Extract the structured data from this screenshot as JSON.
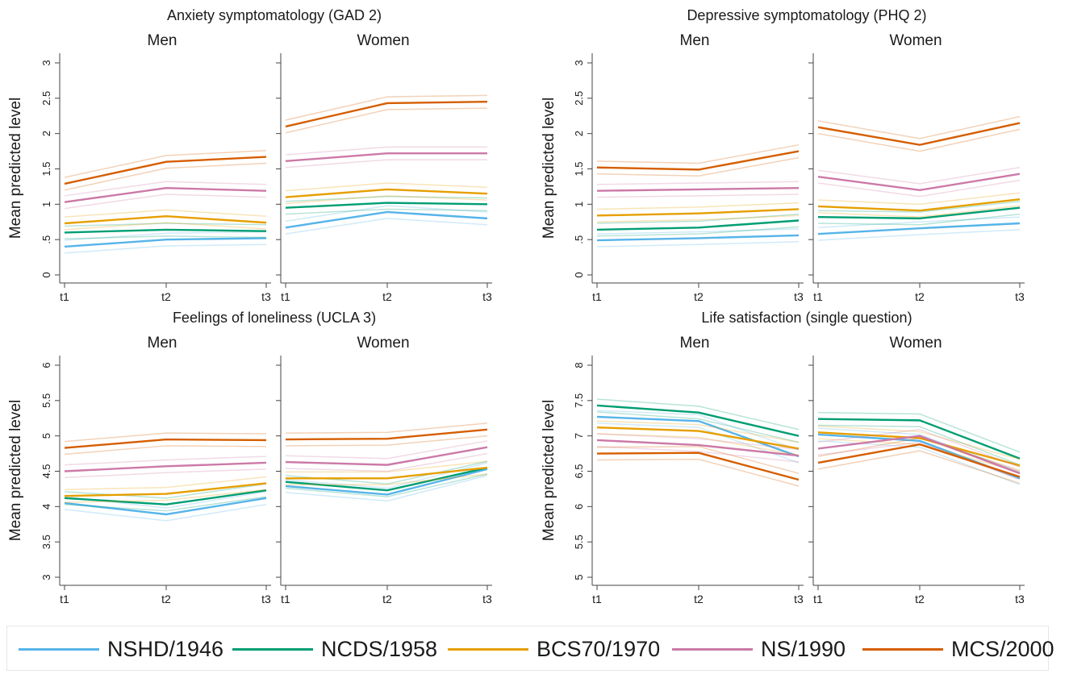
{
  "chart_data": [
    {
      "type": "line",
      "title": "Anxiety symptomatology (GAD 2)",
      "ylabel": "Mean predicted level",
      "ylim": [
        0,
        3
      ],
      "yticks": [
        "0",
        ".5",
        "1",
        "1.5",
        "2",
        "2.5",
        "3"
      ],
      "x": [
        "t1",
        "t2",
        "t3"
      ],
      "panels": [
        {
          "label": "Men",
          "series": [
            {
              "name": "NSHD/1946",
              "values": [
                0.4,
                0.5,
                0.52
              ]
            },
            {
              "name": "NCDS/1958",
              "values": [
                0.6,
                0.64,
                0.62
              ]
            },
            {
              "name": "BCS70/1970",
              "values": [
                0.73,
                0.83,
                0.74
              ]
            },
            {
              "name": "NS/1990",
              "values": [
                1.03,
                1.23,
                1.19
              ]
            },
            {
              "name": "MCS/2000",
              "values": [
                1.29,
                1.6,
                1.67
              ]
            }
          ]
        },
        {
          "label": "Women",
          "series": [
            {
              "name": "NSHD/1946",
              "values": [
                0.67,
                0.89,
                0.8
              ]
            },
            {
              "name": "NCDS/1958",
              "values": [
                0.95,
                1.02,
                1.0
              ]
            },
            {
              "name": "BCS70/1970",
              "values": [
                1.1,
                1.21,
                1.15
              ]
            },
            {
              "name": "NS/1990",
              "values": [
                1.61,
                1.72,
                1.72
              ]
            },
            {
              "name": "MCS/2000",
              "values": [
                2.1,
                2.43,
                2.45
              ]
            }
          ]
        }
      ]
    },
    {
      "type": "line",
      "title": "Depressive symptomatology (PHQ 2)",
      "ylabel": "Mean predicted level",
      "ylim": [
        0,
        3
      ],
      "yticks": [
        "0",
        ".5",
        "1",
        "1.5",
        "2",
        "2.5",
        "3"
      ],
      "x": [
        "t1",
        "t2",
        "t3"
      ],
      "panels": [
        {
          "label": "Men",
          "series": [
            {
              "name": "NSHD/1946",
              "values": [
                0.49,
                0.52,
                0.56
              ]
            },
            {
              "name": "NCDS/1958",
              "values": [
                0.64,
                0.67,
                0.77
              ]
            },
            {
              "name": "BCS70/1970",
              "values": [
                0.84,
                0.87,
                0.93
              ]
            },
            {
              "name": "NS/1990",
              "values": [
                1.19,
                1.21,
                1.23
              ]
            },
            {
              "name": "MCS/2000",
              "values": [
                1.52,
                1.49,
                1.75
              ]
            }
          ]
        },
        {
          "label": "Women",
          "series": [
            {
              "name": "NSHD/1946",
              "values": [
                0.58,
                0.66,
                0.73
              ]
            },
            {
              "name": "NCDS/1958",
              "values": [
                0.82,
                0.8,
                0.95
              ]
            },
            {
              "name": "BCS70/1970",
              "values": [
                0.97,
                0.91,
                1.07
              ]
            },
            {
              "name": "NS/1990",
              "values": [
                1.39,
                1.2,
                1.43
              ]
            },
            {
              "name": "MCS/2000",
              "values": [
                2.09,
                1.84,
                2.15
              ]
            }
          ]
        }
      ]
    },
    {
      "type": "line",
      "title": "Feelings of loneliness (UCLA 3)",
      "ylabel": "Mean predicted level",
      "ylim": [
        3,
        6
      ],
      "yticks": [
        "3",
        "3.5",
        "4",
        "4.5",
        "5",
        "5.5",
        "6"
      ],
      "x": [
        "t1",
        "t2",
        "t3"
      ],
      "panels": [
        {
          "label": "Men",
          "series": [
            {
              "name": "NSHD/1946",
              "values": [
                4.05,
                3.89,
                4.12
              ]
            },
            {
              "name": "NCDS/1958",
              "values": [
                4.12,
                4.03,
                4.23
              ]
            },
            {
              "name": "BCS70/1970",
              "values": [
                4.15,
                4.18,
                4.33
              ]
            },
            {
              "name": "NS/1990",
              "values": [
                4.5,
                4.57,
                4.62
              ]
            },
            {
              "name": "MCS/2000",
              "values": [
                4.83,
                4.95,
                4.94
              ]
            }
          ]
        },
        {
          "label": "Women",
          "series": [
            {
              "name": "NSHD/1946",
              "values": [
                4.29,
                4.17,
                4.53
              ]
            },
            {
              "name": "NCDS/1958",
              "values": [
                4.35,
                4.23,
                4.55
              ]
            },
            {
              "name": "BCS70/1970",
              "values": [
                4.4,
                4.4,
                4.55
              ]
            },
            {
              "name": "NS/1990",
              "values": [
                4.63,
                4.59,
                4.84
              ]
            },
            {
              "name": "MCS/2000",
              "values": [
                4.95,
                4.96,
                5.09
              ]
            }
          ]
        }
      ]
    },
    {
      "type": "line",
      "title": "Life satisfaction (single question)",
      "ylabel": "Mean predicted level",
      "ylim": [
        5,
        8
      ],
      "yticks": [
        "5",
        "5.5",
        "6",
        "6.5",
        "7",
        "7.5",
        "8"
      ],
      "x": [
        "t1",
        "t2",
        "t3"
      ],
      "panels": [
        {
          "label": "Men",
          "series": [
            {
              "name": "NSHD/1946",
              "values": [
                7.27,
                7.21,
                6.71
              ]
            },
            {
              "name": "NCDS/1958",
              "values": [
                7.43,
                7.33,
                7.0
              ]
            },
            {
              "name": "BCS70/1970",
              "values": [
                7.12,
                7.07,
                6.82
              ]
            },
            {
              "name": "NS/1990",
              "values": [
                6.94,
                6.87,
                6.72
              ]
            },
            {
              "name": "MCS/2000",
              "values": [
                6.75,
                6.76,
                6.38
              ]
            }
          ]
        },
        {
          "label": "Women",
          "series": [
            {
              "name": "NSHD/1946",
              "values": [
                7.02,
                6.93,
                6.4
              ]
            },
            {
              "name": "NCDS/1958",
              "values": [
                7.24,
                7.22,
                6.68
              ]
            },
            {
              "name": "BCS70/1970",
              "values": [
                7.05,
                6.97,
                6.58
              ]
            },
            {
              "name": "NS/1990",
              "values": [
                6.82,
                7.0,
                6.47
              ]
            },
            {
              "name": "MCS/2000",
              "values": [
                6.62,
                6.88,
                6.42
              ]
            }
          ]
        }
      ]
    }
  ],
  "legend": {
    "placement": "bottom",
    "items": [
      {
        "name": "NSHD/1946",
        "color": "#56b4e9"
      },
      {
        "name": "NCDS/1958",
        "color": "#009e73"
      },
      {
        "name": "BCS70/1970",
        "color": "#e69f00"
      },
      {
        "name": "NS/1990",
        "color": "#cc79a7"
      },
      {
        "name": "MCS/2000",
        "color": "#d55e00"
      }
    ]
  }
}
